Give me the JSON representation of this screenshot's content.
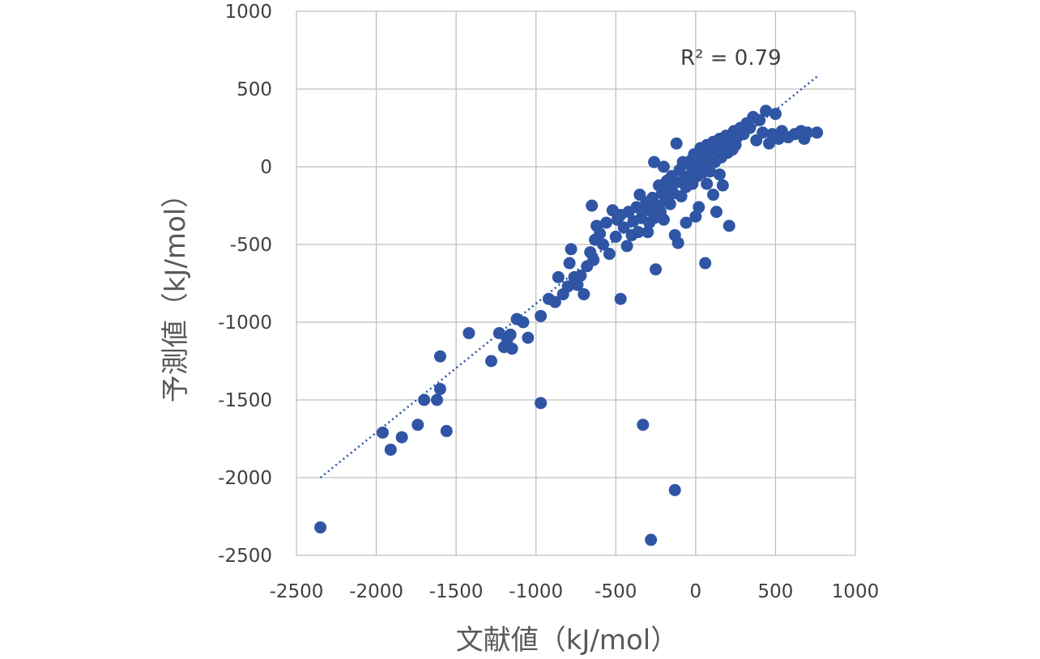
{
  "colors": {
    "points": "#2F55A4",
    "trendline": "#2F55A4",
    "grid": "#BFBFBF",
    "text": "#404040"
  },
  "chart_data": {
    "type": "scatter",
    "xlabel": "文献値（kJ/mol）",
    "ylabel": "予測値（kJ/mol）",
    "xlim": [
      -2500,
      1000
    ],
    "ylim": [
      -2500,
      1000
    ],
    "xticks": [
      -2500,
      -2000,
      -1500,
      -1000,
      -500,
      0,
      500,
      1000
    ],
    "yticks": [
      -2500,
      -2000,
      -1500,
      -1000,
      -500,
      0,
      500,
      1000
    ],
    "xtick_labels": [
      "-2500",
      "-2000",
      "-1500",
      "-1000",
      "-500",
      "0",
      "500",
      "1000"
    ],
    "ytick_labels": [
      "-2500",
      "-2000",
      "-1500",
      "-1000",
      "-500",
      "0",
      "500",
      "1000"
    ],
    "grid": true,
    "annotation": "R² = 0.79",
    "trendline": {
      "style": "dotted",
      "x": [
        -2350,
        760
      ],
      "y": [
        -2000,
        580
      ]
    },
    "series": [
      {
        "points": [
          [
            -2350,
            -2320
          ],
          [
            -1960,
            -1710
          ],
          [
            -1910,
            -1820
          ],
          [
            -1840,
            -1740
          ],
          [
            -1740,
            -1660
          ],
          [
            -1700,
            -1500
          ],
          [
            -1620,
            -1500
          ],
          [
            -1600,
            -1430
          ],
          [
            -1560,
            -1700
          ],
          [
            -1600,
            -1220
          ],
          [
            -1420,
            -1070
          ],
          [
            -1280,
            -1250
          ],
          [
            -1230,
            -1070
          ],
          [
            -1200,
            -1160
          ],
          [
            -1180,
            -1110
          ],
          [
            -1160,
            -1080
          ],
          [
            -1150,
            -1170
          ],
          [
            -1120,
            -980
          ],
          [
            -1080,
            -1000
          ],
          [
            -1050,
            -1100
          ],
          [
            -970,
            -960
          ],
          [
            -970,
            -1520
          ],
          [
            -920,
            -850
          ],
          [
            -880,
            -870
          ],
          [
            -860,
            -710
          ],
          [
            -830,
            -820
          ],
          [
            -800,
            -770
          ],
          [
            -790,
            -620
          ],
          [
            -780,
            -530
          ],
          [
            -760,
            -710
          ],
          [
            -740,
            -760
          ],
          [
            -720,
            -700
          ],
          [
            -700,
            -820
          ],
          [
            -680,
            -640
          ],
          [
            -660,
            -550
          ],
          [
            -650,
            -250
          ],
          [
            -640,
            -600
          ],
          [
            -630,
            -470
          ],
          [
            -620,
            -380
          ],
          [
            -600,
            -430
          ],
          [
            -580,
            -500
          ],
          [
            -560,
            -360
          ],
          [
            -540,
            -560
          ],
          [
            -520,
            -280
          ],
          [
            -500,
            -450
          ],
          [
            -490,
            -340
          ],
          [
            -470,
            -310
          ],
          [
            -470,
            -850
          ],
          [
            -450,
            -390
          ],
          [
            -430,
            -510
          ],
          [
            -420,
            -290
          ],
          [
            -400,
            -440
          ],
          [
            -390,
            -350
          ],
          [
            -370,
            -260
          ],
          [
            -360,
            -420
          ],
          [
            -350,
            -180
          ],
          [
            -340,
            -330
          ],
          [
            -330,
            -290
          ],
          [
            -310,
            -230
          ],
          [
            -300,
            -420
          ],
          [
            -290,
            -360
          ],
          [
            -280,
            -280
          ],
          [
            -270,
            -200
          ],
          [
            -260,
            -330
          ],
          [
            -250,
            -660
          ],
          [
            -240,
            -250
          ],
          [
            -230,
            -120
          ],
          [
            -220,
            -290
          ],
          [
            -210,
            -170
          ],
          [
            -200,
            -340
          ],
          [
            -190,
            -220
          ],
          [
            -180,
            -90
          ],
          [
            -170,
            -150
          ],
          [
            -160,
            -240
          ],
          [
            -150,
            -60
          ],
          [
            -140,
            -170
          ],
          [
            -130,
            -440
          ],
          [
            -120,
            -100
          ],
          [
            -110,
            -490
          ],
          [
            -100,
            -20
          ],
          [
            -90,
            -190
          ],
          [
            -80,
            30
          ],
          [
            -70,
            -70
          ],
          [
            -60,
            -130
          ],
          [
            -50,
            20
          ],
          [
            -40,
            -60
          ],
          [
            -30,
            40
          ],
          [
            -20,
            -10
          ],
          [
            -10,
            80
          ],
          [
            0,
            10
          ],
          [
            10,
            -60
          ],
          [
            20,
            60
          ],
          [
            30,
            120
          ],
          [
            40,
            -40
          ],
          [
            50,
            90
          ],
          [
            60,
            20
          ],
          [
            70,
            140
          ],
          [
            80,
            50
          ],
          [
            90,
            -30
          ],
          [
            100,
            110
          ],
          [
            110,
            160
          ],
          [
            120,
            30
          ],
          [
            130,
            -290
          ],
          [
            140,
            100
          ],
          [
            150,
            180
          ],
          [
            160,
            60
          ],
          [
            170,
            -120
          ],
          [
            180,
            140
          ],
          [
            190,
            200
          ],
          [
            200,
            90
          ],
          [
            210,
            -380
          ],
          [
            220,
            170
          ],
          [
            230,
            110
          ],
          [
            240,
            230
          ],
          [
            250,
            140
          ],
          [
            260,
            190
          ],
          [
            280,
            250
          ],
          [
            300,
            210
          ],
          [
            320,
            280
          ],
          [
            340,
            250
          ],
          [
            360,
            320
          ],
          [
            380,
            170
          ],
          [
            400,
            300
          ],
          [
            420,
            220
          ],
          [
            440,
            360
          ],
          [
            460,
            150
          ],
          [
            480,
            210
          ],
          [
            500,
            340
          ],
          [
            520,
            180
          ],
          [
            540,
            230
          ],
          [
            580,
            190
          ],
          [
            620,
            210
          ],
          [
            660,
            230
          ],
          [
            680,
            180
          ],
          [
            700,
            220
          ],
          [
            760,
            220
          ],
          [
            60,
            -620
          ],
          [
            -280,
            -2400
          ],
          [
            -330,
            -1660
          ],
          [
            -130,
            -2080
          ],
          [
            -60,
            -360
          ],
          [
            0,
            -320
          ],
          [
            20,
            -260
          ],
          [
            -20,
            -110
          ],
          [
            -200,
            0
          ],
          [
            -260,
            30
          ],
          [
            110,
            -180
          ],
          [
            70,
            -110
          ],
          [
            -120,
            150
          ],
          [
            150,
            -50
          ]
        ]
      }
    ]
  }
}
